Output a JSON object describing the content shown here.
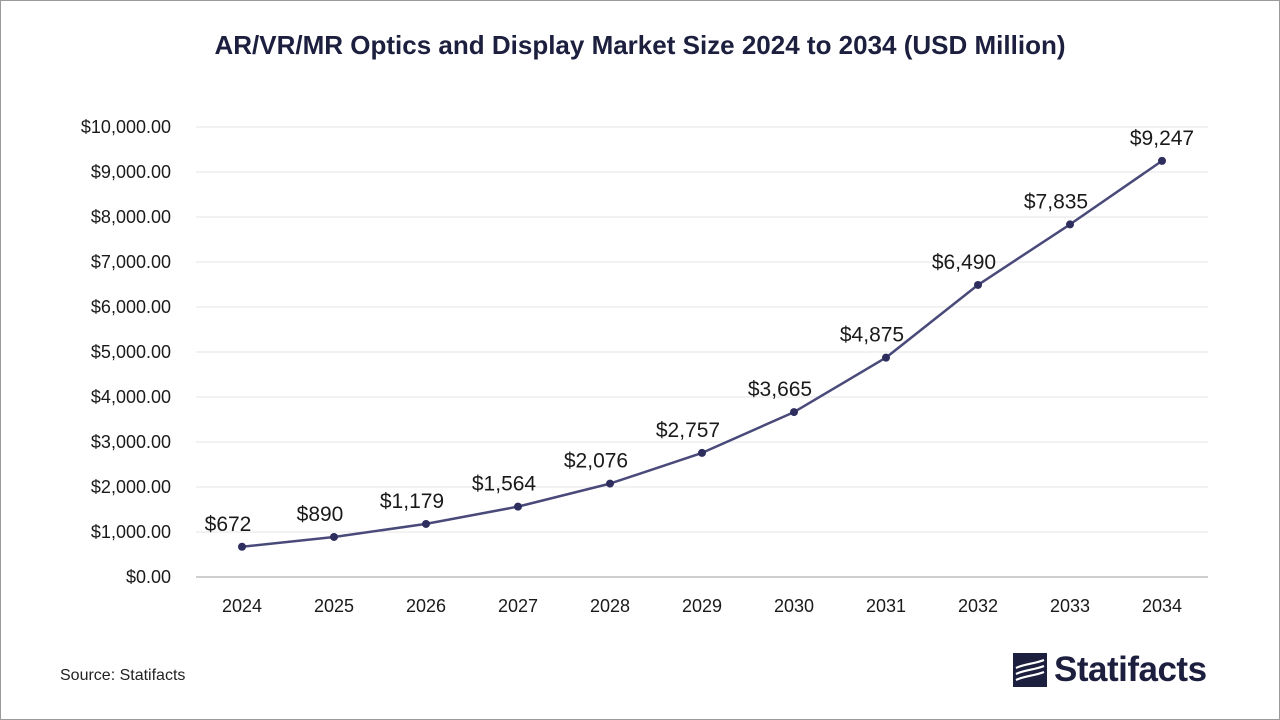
{
  "source": "Source: Statifacts",
  "brand": {
    "name": "Statifacts",
    "icon": "statifacts-logo-icon"
  },
  "colors": {
    "line": "#4a4a7a",
    "marker": "#2e2e5e",
    "grid": "#e6e6e6",
    "axis": "#bfbfbf",
    "title": "#1c1f3e"
  },
  "chart_data": {
    "type": "line",
    "title": "AR/VR/MR Optics and Display Market Size 2024 to 2034 (USD Million)",
    "xlabel": "",
    "ylabel": "",
    "categories": [
      "2024",
      "2025",
      "2026",
      "2027",
      "2028",
      "2029",
      "2030",
      "2031",
      "2032",
      "2033",
      "2034"
    ],
    "values": [
      672,
      890,
      1179,
      1564,
      2076,
      2757,
      3665,
      4875,
      6490,
      7835,
      9247
    ],
    "data_labels": [
      "$672",
      "$890",
      "$1,179",
      "$1,564",
      "$2,076",
      "$2,757",
      "$3,665",
      "$4,875",
      "$6,490",
      "$7,835",
      "$9,247"
    ],
    "y_ticks": [
      0,
      1000,
      2000,
      3000,
      4000,
      5000,
      6000,
      7000,
      8000,
      9000,
      10000
    ],
    "y_tick_labels": [
      "$0.00",
      "$1,000.00",
      "$2,000.00",
      "$3,000.00",
      "$4,000.00",
      "$5,000.00",
      "$6,000.00",
      "$7,000.00",
      "$8,000.00",
      "$9,000.00",
      "$10,000.00"
    ],
    "ylim": [
      0,
      10000
    ],
    "grid": true,
    "legend": "none"
  }
}
